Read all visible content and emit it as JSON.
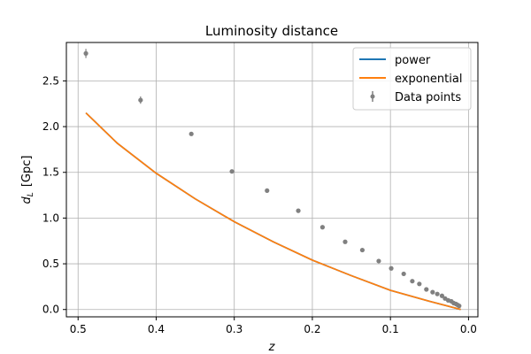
{
  "chart_data": {
    "type": "line",
    "title": "Luminosity distance",
    "xlabel": "z",
    "ylabel_main": "d",
    "ylabel_sub": "L",
    "ylabel_unit": "[Gpc]",
    "xlim": [
      0.515,
      -0.012
    ],
    "ylim": [
      -0.08,
      2.92
    ],
    "x_inverted": true,
    "grid": true,
    "legend_position": "top-right",
    "xticks": [
      0.5,
      0.4,
      0.3,
      0.2,
      0.1,
      0.0
    ],
    "xtick_labels": [
      "0.5",
      "0.4",
      "0.3",
      "0.2",
      "0.1",
      "0.0"
    ],
    "yticks": [
      0.0,
      0.5,
      1.0,
      1.5,
      2.0,
      2.5
    ],
    "ytick_labels": [
      "0.0",
      "0.5",
      "1.0",
      "1.5",
      "2.0",
      "2.5"
    ],
    "series": [
      {
        "name": "power",
        "kind": "line",
        "color": "#1f77b4",
        "x": [
          0.49,
          0.45,
          0.4,
          0.35,
          0.3,
          0.25,
          0.2,
          0.15,
          0.1,
          0.05,
          0.01
        ],
        "y": [
          2.15,
          1.82,
          1.49,
          1.21,
          0.96,
          0.74,
          0.54,
          0.37,
          0.21,
          0.09,
          0.0
        ]
      },
      {
        "name": "exponential",
        "kind": "line",
        "color": "#ff7f0e",
        "x": [
          0.49,
          0.45,
          0.4,
          0.35,
          0.3,
          0.25,
          0.2,
          0.15,
          0.1,
          0.05,
          0.01
        ],
        "y": [
          2.15,
          1.82,
          1.49,
          1.21,
          0.96,
          0.74,
          0.54,
          0.37,
          0.21,
          0.09,
          0.0
        ]
      },
      {
        "name": "Data points",
        "kind": "errorbar",
        "color": "#808080",
        "x": [
          0.49,
          0.42,
          0.355,
          0.303,
          0.258,
          0.218,
          0.187,
          0.158,
          0.136,
          0.115,
          0.099,
          0.083,
          0.072,
          0.063,
          0.054,
          0.046,
          0.04,
          0.034,
          0.03,
          0.026,
          0.022,
          0.019,
          0.016,
          0.014,
          0.012
        ],
        "y": [
          2.8,
          2.29,
          1.92,
          1.51,
          1.3,
          1.08,
          0.9,
          0.74,
          0.65,
          0.53,
          0.45,
          0.39,
          0.31,
          0.28,
          0.22,
          0.19,
          0.17,
          0.15,
          0.12,
          0.1,
          0.09,
          0.07,
          0.06,
          0.05,
          0.04
        ],
        "yerr": [
          0.05,
          0.04,
          0.02,
          0.02,
          0.01,
          0.01,
          0.01,
          0.01,
          0.01,
          0.01,
          0.01,
          0.01,
          0.01,
          0.01,
          0.01,
          0.01,
          0.01,
          0.01,
          0.01,
          0.01,
          0.01,
          0.01,
          0.01,
          0.01,
          0.01
        ]
      }
    ]
  }
}
